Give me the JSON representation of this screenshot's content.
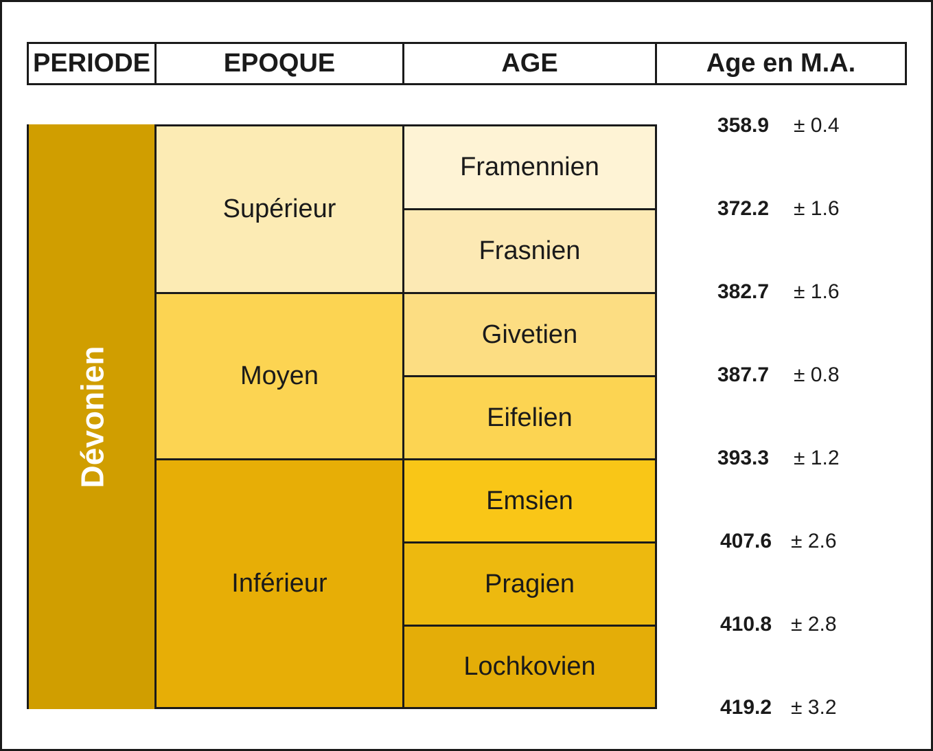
{
  "headers": {
    "periode": "PERIODE",
    "epoque": "EPOQUE",
    "age": "AGE",
    "age_ma": "Age en M.A."
  },
  "period": {
    "label": "Dévonien",
    "color": "#D09E00"
  },
  "epochs": [
    {
      "label": "Supérieur",
      "color": "#FCEBB4"
    },
    {
      "label": "Moyen",
      "color": "#FCD452"
    },
    {
      "label": "Inférieur",
      "color": "#E7AE06"
    }
  ],
  "ages": [
    {
      "label": "Framennien",
      "color": "#FEF3D5"
    },
    {
      "label": "Frasnien",
      "color": "#FCE9B4"
    },
    {
      "label": "Givetien",
      "color": "#FCDD82"
    },
    {
      "label": "Eifelien",
      "color": "#FCD452"
    },
    {
      "label": "Emsien",
      "color": "#F9C617"
    },
    {
      "label": "Pragien",
      "color": "#EDB90F"
    },
    {
      "label": "Lochkovien",
      "color": "#E4AD08"
    }
  ],
  "boundaries": [
    {
      "value": "358.9",
      "error": "± 0.4"
    },
    {
      "value": "372.2",
      "error": "± 1.6"
    },
    {
      "value": "382.7",
      "error": "± 1.6"
    },
    {
      "value": "387.7",
      "error": "± 0.8"
    },
    {
      "value": "393.3",
      "error": "± 1.2"
    },
    {
      "value": "407.6",
      "error": "± 2.6"
    },
    {
      "value": "410.8",
      "error": "± 2.8"
    },
    {
      "value": "419.2",
      "error": "± 3.2"
    }
  ]
}
